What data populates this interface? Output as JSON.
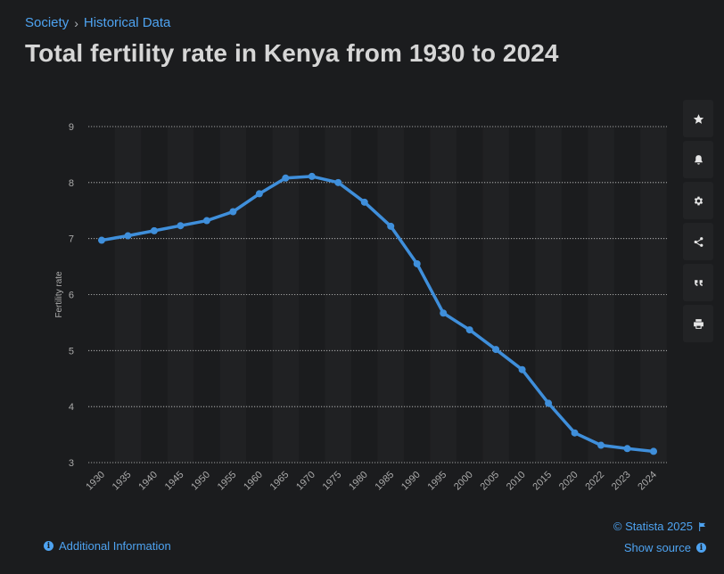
{
  "breadcrumb": {
    "items": [
      "Society",
      "Historical Data"
    ],
    "separator": "›"
  },
  "title": "Total fertility rate in Kenya from 1930 to 2024",
  "toolbar": {
    "icons": [
      "star-icon",
      "bell-icon",
      "gear-icon",
      "share-icon",
      "quote-icon",
      "print-icon"
    ]
  },
  "footer": {
    "additional_info": "Additional Information",
    "credit": "© Statista 2025",
    "show_source": "Show source"
  },
  "colors": {
    "background": "#1b1c1e",
    "line": "#3f8fdb",
    "link": "#4ea3f1",
    "band": "#202123"
  },
  "chart_data": {
    "type": "line",
    "title": "Total fertility rate in Kenya from 1930 to 2024",
    "xlabel": "",
    "ylabel": "Fertility rate",
    "ylim": [
      3,
      9
    ],
    "yticks": [
      3,
      4,
      5,
      6,
      7,
      8,
      9
    ],
    "grid": true,
    "categories": [
      "1930",
      "1935",
      "1940",
      "1945",
      "1950",
      "1955",
      "1960",
      "1965",
      "1970",
      "1975",
      "1980",
      "1985",
      "1990",
      "1995",
      "2000",
      "2005",
      "2010",
      "2015",
      "2020",
      "2022",
      "2023",
      "2024"
    ],
    "series": [
      {
        "values": [
          6.97,
          7.05,
          7.14,
          7.23,
          7.32,
          7.48,
          7.8,
          8.08,
          8.11,
          8.0,
          7.65,
          7.22,
          6.55,
          5.67,
          5.37,
          5.02,
          4.66,
          4.06,
          3.53,
          3.31,
          3.25,
          3.2
        ]
      }
    ]
  }
}
